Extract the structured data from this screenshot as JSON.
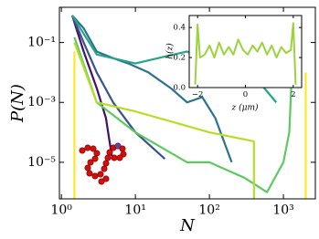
{
  "chart_data": [
    {
      "type": "line",
      "xscale": "log",
      "yscale": "log",
      "xlabel": "N",
      "ylabel": "P(N)",
      "xlim": [
        0.94,
        2700
      ],
      "ylim": [
        6e-07,
        1.5
      ],
      "xticks": [
        {
          "value": 1,
          "label": "10⁰"
        },
        {
          "value": 10,
          "label": "10¹"
        },
        {
          "value": 100,
          "label": "10²"
        },
        {
          "value": 1000,
          "label": "10³"
        }
      ],
      "yticks": [
        {
          "value": 0.1,
          "label": "10⁻¹"
        },
        {
          "value": 0.001,
          "label": "10⁻³"
        },
        {
          "value": 1e-05,
          "label": "10⁻⁵"
        }
      ],
      "series": [
        {
          "color": "#440f66",
          "x": [
            1.4,
            2,
            3,
            4,
            4.8
          ],
          "values": [
            0.8,
            0.05,
            0.003,
            0.0003,
            1.6e-05
          ]
        },
        {
          "color": "#3a528b",
          "x": [
            1.4,
            2,
            3,
            5,
            10,
            25
          ],
          "values": [
            0.8,
            0.1,
            0.01,
            0.001,
            0.0001,
            1.3e-05
          ]
        },
        {
          "color": "#2c728e",
          "x": [
            1.4,
            2,
            3,
            5,
            8,
            15,
            30,
            50,
            80,
            120,
            200
          ],
          "values": [
            0.8,
            0.3,
            0.05,
            0.03,
            0.02,
            0.01,
            0.003,
            0.001,
            0.0015,
            0.0003,
            1e-05
          ]
        },
        {
          "color": "#25a584",
          "x": [
            1.4,
            3,
            10,
            20,
            50,
            100,
            300,
            500,
            800
          ],
          "values": [
            0.8,
            0.04,
            0.02,
            0.03,
            0.05,
            0.02,
            0.01,
            0.004,
            0.001
          ]
        },
        {
          "color": "#5ec962",
          "x": [
            1.5,
            3,
            10,
            50,
            100,
            300,
            600,
            1000,
            1200,
            1300
          ],
          "values": [
            0.15,
            0.001,
            0.0001,
            1e-05,
            1e-05,
            3e-06,
            1e-06,
            1e-05,
            0.0001,
            0.01
          ]
        },
        {
          "color": "#b5de2b",
          "x": [
            1.5,
            3,
            10,
            100,
            400,
            400
          ],
          "values": [
            0.1,
            0.001,
            0.0005,
            0.0001,
            5e-05,
            6e-07
          ]
        },
        {
          "color": "#fde725",
          "x": [
            1.5,
            1.5,
            1000,
            2000,
            2000
          ],
          "values": [
            0.05,
            6e-07,
            null,
            0.01,
            6e-07
          ]
        }
      ]
    },
    {
      "type": "line",
      "xlabel": "z (μm)",
      "ylabel": "h(z)",
      "xlim": [
        -2.35,
        2.35
      ],
      "ylim": [
        0,
        0.48
      ],
      "xticks": [
        {
          "value": -2,
          "label": "−2"
        },
        0,
        2
      ],
      "yticks": [
        {
          "value": 0,
          "label": "0.0"
        },
        0.2,
        0.4
      ],
      "series": [
        {
          "color": "#9bd33a",
          "x": [
            -2.1,
            -2.0,
            -1.9,
            -1.7,
            -1.5,
            -1.3,
            -1.1,
            -0.9,
            -0.7,
            -0.5,
            -0.3,
            -0.1,
            0.1,
            0.3,
            0.5,
            0.7,
            0.9,
            1.1,
            1.3,
            1.5,
            1.7,
            1.9,
            2.0,
            2.1
          ],
          "values": [
            0.02,
            0.42,
            0.2,
            0.22,
            0.28,
            0.2,
            0.3,
            0.22,
            0.27,
            0.22,
            0.32,
            0.25,
            0.22,
            0.28,
            0.24,
            0.3,
            0.22,
            0.28,
            0.2,
            0.27,
            0.23,
            0.25,
            0.43,
            0.02
          ]
        }
      ]
    }
  ]
}
